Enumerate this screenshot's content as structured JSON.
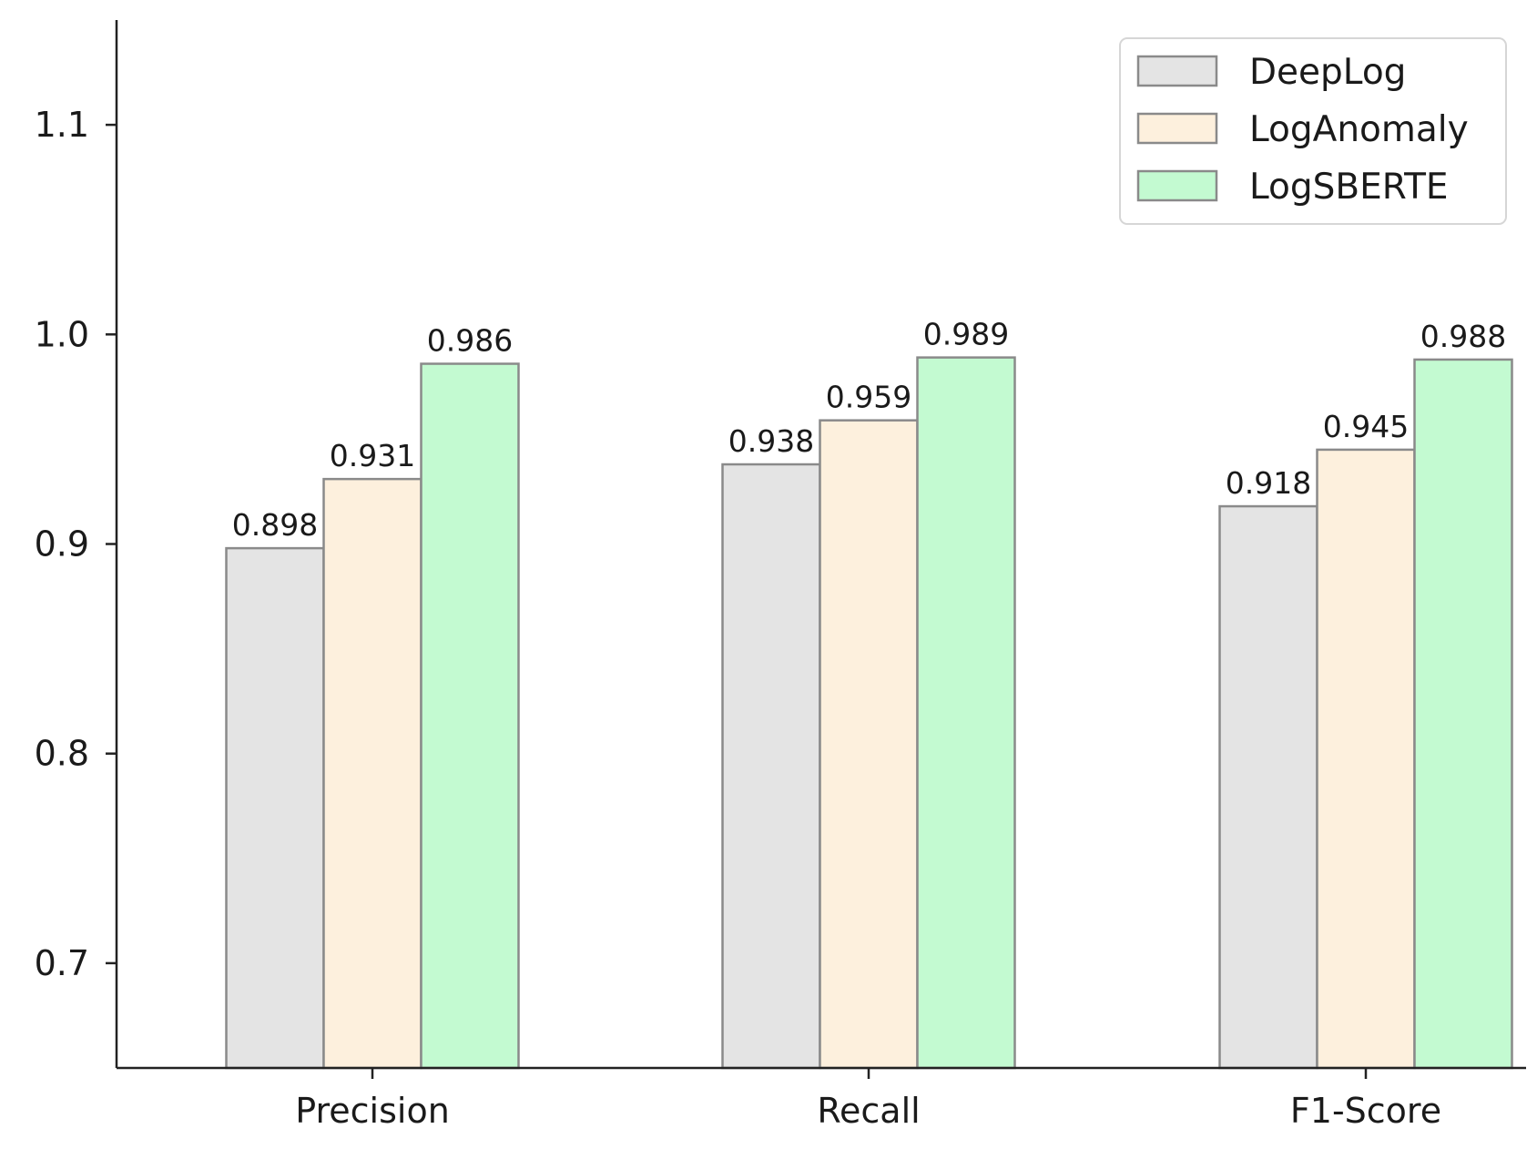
{
  "chart_data": {
    "type": "bar",
    "title": "",
    "xlabel": "",
    "ylabel": "",
    "categories": [
      "Precision",
      "Recall",
      "F1-Score"
    ],
    "series": [
      {
        "name": "DeepLog",
        "values": [
          0.898,
          0.938,
          0.918
        ],
        "color": "#e4e4e4"
      },
      {
        "name": "LogAnomaly",
        "values": [
          0.931,
          0.959,
          0.945
        ],
        "color": "#fdf0dd"
      },
      {
        "name": "LogSBERTE",
        "values": [
          0.986,
          0.989,
          0.988
        ],
        "color": "#c3fad1"
      }
    ],
    "value_labels": [
      [
        "0.898",
        "0.938",
        "0.918"
      ],
      [
        "0.931",
        "0.959",
        "0.945"
      ],
      [
        "0.986",
        "0.989",
        "0.988"
      ]
    ],
    "ylim": [
      0.65,
      1.15
    ],
    "yticks": [
      0.7,
      0.8,
      0.9,
      1.0,
      1.1
    ],
    "ytick_labels": [
      "0.7",
      "0.8",
      "0.9",
      "1.0",
      "1.1"
    ],
    "grid": false,
    "legend_position": "top-right",
    "bar_edge_color": "#8a8a8a",
    "axis_color": "#222222"
  }
}
